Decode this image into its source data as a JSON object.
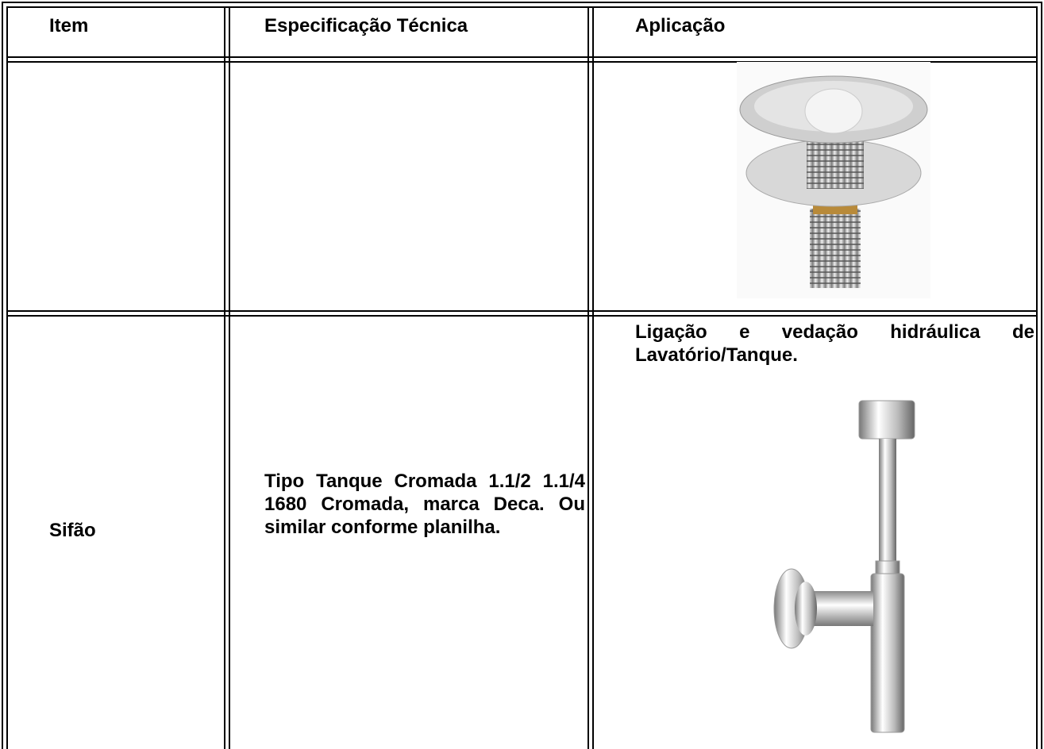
{
  "table": {
    "header": [
      "Item",
      "Especificação Técnica",
      "Aplicação"
    ],
    "rows": [
      {
        "item": "Sifão",
        "specification": "Tipo Tanque Cromada 1.1/2 1.1/4 1680 Cromada, marca Deca. Ou similar conforme planilha.",
        "application": "Ligação e vedação hidráulica de Lavatório/Tanque."
      }
    ]
  }
}
